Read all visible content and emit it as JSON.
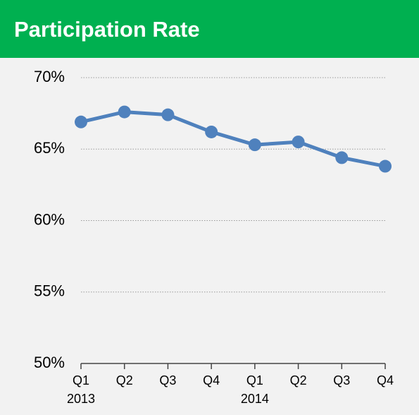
{
  "chart_data": {
    "type": "line",
    "title": "Participation Rate",
    "categories": [
      "Q1",
      "Q2",
      "Q3",
      "Q4",
      "Q1",
      "Q2",
      "Q3",
      "Q4"
    ],
    "category_groups": [
      {
        "label": "2013",
        "size": 4
      },
      {
        "label": "2014",
        "size": 4
      }
    ],
    "series": [
      {
        "color": "#4f81bd",
        "values": [
          66.9,
          67.6,
          67.4,
          66.2,
          65.3,
          65.5,
          64.4,
          63.8
        ]
      }
    ],
    "ylim": [
      50,
      70
    ],
    "yticks": [
      {
        "value": 50,
        "label": "50%"
      },
      {
        "value": 55,
        "label": "55%"
      },
      {
        "value": 60,
        "label": "60%"
      },
      {
        "value": 65,
        "label": "65%"
      },
      {
        "value": 70,
        "label": "70%"
      }
    ],
    "grid": true
  }
}
